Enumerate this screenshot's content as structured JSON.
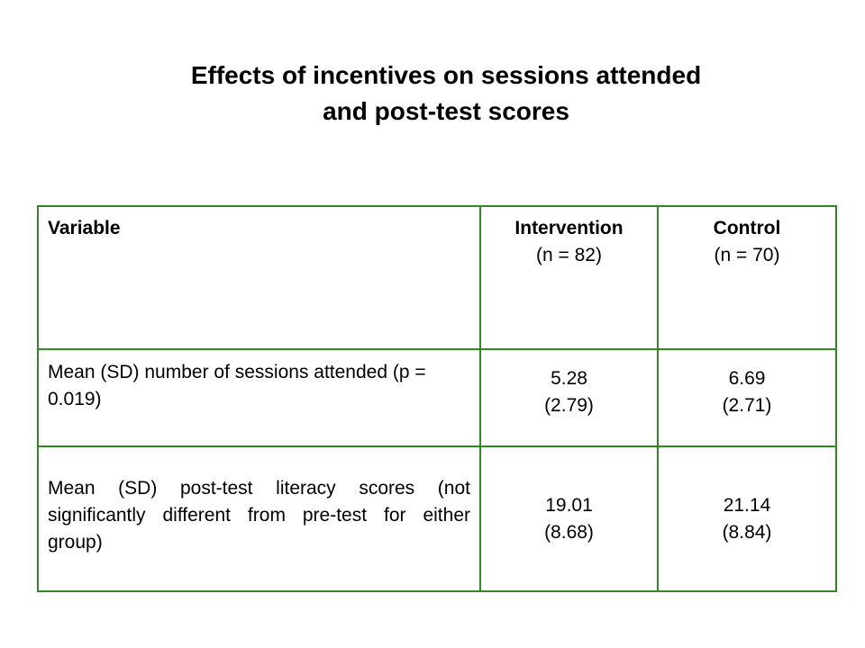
{
  "title": {
    "line1": "Effects of incentives on sessions attended",
    "line2": "and post-test scores"
  },
  "table": {
    "headers": {
      "variable": "Variable",
      "intervention": {
        "name": "Intervention",
        "n": "(n = 82)"
      },
      "control": {
        "name": "Control",
        "n": "(n = 70)"
      }
    },
    "rows": [
      {
        "label": "Mean (SD) number of sessions attended (p = 0.019)",
        "intervention": {
          "mean": "5.28",
          "sd": "(2.79)"
        },
        "control": {
          "mean": "6.69",
          "sd": "(2.71)"
        }
      },
      {
        "label": "Mean (SD) post-test literacy scores (not significantly different from pre-test for either group)",
        "intervention": {
          "mean": "19.01",
          "sd": "(8.68)"
        },
        "control": {
          "mean": "21.14",
          "sd": "(8.84)"
        }
      }
    ]
  },
  "colors": {
    "table_border": "#2e8b1f",
    "text": "#000000",
    "background": "#ffffff"
  }
}
